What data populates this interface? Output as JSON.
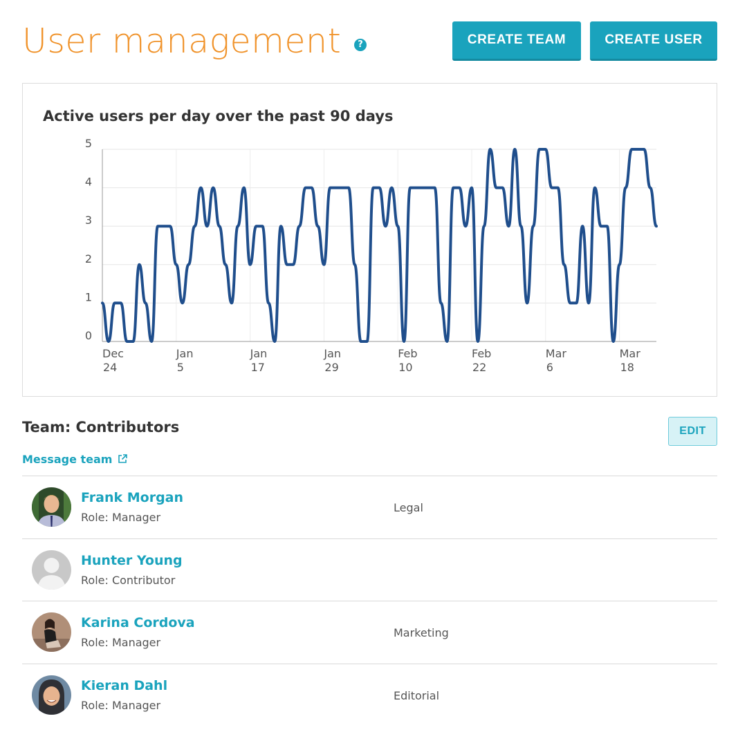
{
  "header": {
    "title": "User management",
    "help_icon": "question-circle-icon",
    "create_team_label": "CREATE TEAM",
    "create_user_label": "CREATE USER"
  },
  "colors": {
    "title_orange": "#f0932b",
    "accent_teal": "#1aa3bd",
    "chart_line": "#1f4e8c"
  },
  "chart_data": {
    "type": "line",
    "title": "Active users per day over the past 90 days",
    "xlabel": "",
    "ylabel": "",
    "ylim": [
      0,
      5
    ],
    "yticks": [
      "0",
      "1",
      "2",
      "3",
      "4",
      "5"
    ],
    "xticks": [
      {
        "month": "Dec",
        "day": "24"
      },
      {
        "month": "Jan",
        "day": "5"
      },
      {
        "month": "Jan",
        "day": "17"
      },
      {
        "month": "Jan",
        "day": "29"
      },
      {
        "month": "Feb",
        "day": "10"
      },
      {
        "month": "Feb",
        "day": "22"
      },
      {
        "month": "Mar",
        "day": "6"
      },
      {
        "month": "Mar",
        "day": "18"
      }
    ],
    "grid": true,
    "series": [
      {
        "values": [
          1,
          0,
          1,
          1,
          0,
          0,
          2,
          1,
          0,
          3,
          3,
          3,
          2,
          1,
          2,
          3,
          4,
          3,
          4,
          3,
          2,
          1,
          3,
          4,
          2,
          3,
          3,
          1,
          0,
          3,
          2,
          2,
          3,
          4,
          4,
          3,
          2,
          4,
          4,
          4,
          4,
          2,
          0,
          0,
          4,
          4,
          3,
          4,
          3,
          0,
          4,
          4,
          4,
          4,
          4,
          1,
          0,
          4,
          4,
          3,
          4,
          0,
          3,
          5,
          4,
          4,
          3,
          5,
          3,
          1,
          3,
          5,
          5,
          4,
          4,
          2,
          1,
          1,
          3,
          1,
          4,
          3,
          3,
          0,
          2,
          4,
          5,
          5,
          5,
          4,
          3
        ]
      }
    ]
  },
  "team": {
    "title": "Team: Contributors",
    "edit_label": "EDIT",
    "message_link": "Message team",
    "members": [
      {
        "name": "Frank Morgan",
        "role": "Role: Manager",
        "department": "Legal"
      },
      {
        "name": "Hunter Young",
        "role": "Role: Contributor",
        "department": ""
      },
      {
        "name": "Karina Cordova",
        "role": "Role: Manager",
        "department": "Marketing"
      },
      {
        "name": "Kieran Dahl",
        "role": "Role: Manager",
        "department": "Editorial"
      }
    ]
  }
}
